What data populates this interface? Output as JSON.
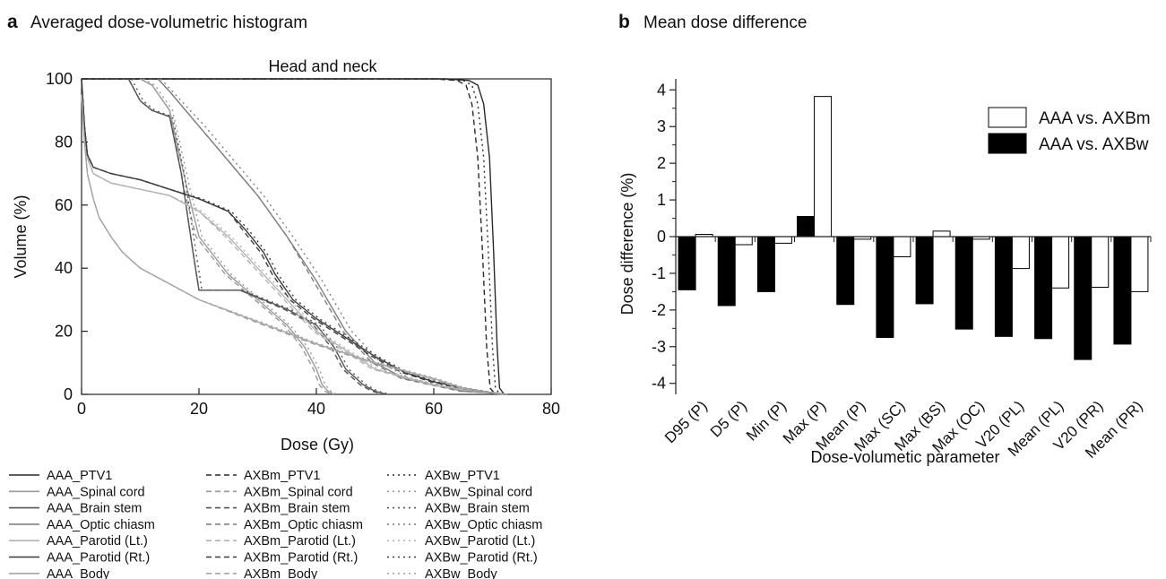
{
  "colors": {
    "PTV1": "#2a2a2a",
    "Spinal cord": "#9a9a9a",
    "Brain stem": "#555555",
    "Optic chiasm": "#808080",
    "Parotid (Lt.)": "#b3b3b3",
    "Parotid (Rt.)": "#3c3c3c",
    "Body": "#a6a6a6",
    "bar_axbm": "#ffffff",
    "bar_axbw": "#000000"
  },
  "chart_data": [
    {
      "type": "line",
      "panel_label": "a",
      "panel_title": "Averaged dose-volumetric histogram",
      "title": "Head and neck",
      "xlabel": "Dose (Gy)",
      "ylabel": "Volume (%)",
      "xlim": [
        0,
        80
      ],
      "ylim": [
        0,
        100
      ],
      "xticks": [
        "0",
        "20",
        "40",
        "60",
        "80"
      ],
      "yticks": [
        "0",
        "20",
        "40",
        "60",
        "80",
        "100"
      ],
      "grid": false,
      "legend_position": "bottom",
      "legend": [
        [
          "AAA_PTV1",
          "AXBm_PTV1",
          "AXBw_PTV1"
        ],
        [
          "AAA_Spinal cord",
          "AXBm_Spinal cord",
          "AXBw_Spinal cord"
        ],
        [
          "AAA_Brain stem",
          "AXBm_Brain stem",
          "AXBw_Brain stem"
        ],
        [
          "AAA_Optic chiasm",
          "AXBm_Optic chiasm",
          "AXBw_Optic chiasm"
        ],
        [
          "AAA_Parotid (Lt.)",
          "AXBm_Parotid (Lt.)",
          "AXBw_Parotid (Lt.)"
        ],
        [
          "AAA_Parotid (Rt.)",
          "AXBm_Parotid (Rt.)",
          "AXBw_Parotid (Rt.)"
        ],
        [
          "AAA_Body",
          "AXBm_Body",
          "AXBw_Body"
        ]
      ],
      "series": [
        {
          "name": "AAA_PTV1",
          "x": [
            0,
            62,
            66,
            67.5,
            68.5,
            69.5,
            70.2,
            70.8,
            71.2,
            72
          ],
          "y": [
            100,
            100,
            99.5,
            98,
            92,
            75,
            45,
            15,
            2,
            0
          ]
        },
        {
          "name": "AXBm_PTV1",
          "x": [
            0,
            60,
            64,
            65.5,
            66.5,
            67.5,
            68.3,
            69,
            69.6,
            70.5
          ],
          "y": [
            100,
            100,
            99.5,
            98,
            92,
            75,
            45,
            15,
            2,
            0
          ]
        },
        {
          "name": "AXBw_PTV1",
          "x": [
            0,
            61,
            65,
            66.5,
            67.5,
            68.5,
            69.3,
            70,
            70.5,
            71.3
          ],
          "y": [
            100,
            100,
            99.5,
            98,
            92,
            75,
            45,
            15,
            2,
            0
          ]
        },
        {
          "name": "AAA_Spinal cord",
          "x": [
            10,
            12,
            15,
            18,
            20,
            25,
            30,
            35,
            38,
            40,
            41,
            42,
            43
          ],
          "y": [
            100,
            98,
            90,
            65,
            50,
            38,
            30,
            22,
            15,
            8,
            3,
            1,
            0
          ]
        },
        {
          "name": "AXBm_Spinal cord",
          "x": [
            10,
            12,
            15,
            17.5,
            19.5,
            24.5,
            29.5,
            34.5,
            37.5,
            39.5,
            40.5,
            41.5,
            42.5
          ],
          "y": [
            100,
            98,
            90,
            65,
            50,
            38,
            30,
            22,
            15,
            8,
            3,
            1,
            0
          ]
        },
        {
          "name": "AXBw_Spinal cord",
          "x": [
            10.5,
            12.5,
            15.5,
            18.5,
            20.5,
            25.5,
            30.5,
            35.5,
            38.5,
            40.5,
            41.5,
            42.5,
            43.5
          ],
          "y": [
            100,
            98,
            90,
            65,
            50,
            38,
            30,
            22,
            15,
            8,
            3,
            1,
            0
          ]
        },
        {
          "name": "AAA_Brain stem",
          "x": [
            8,
            10,
            12,
            15,
            17,
            19,
            20,
            22,
            27,
            35,
            40,
            43,
            45,
            48,
            50,
            52
          ],
          "y": [
            100,
            93,
            90,
            88,
            70,
            45,
            33,
            33,
            33,
            27,
            22,
            15,
            8,
            3,
            1,
            0
          ]
        },
        {
          "name": "AXBm_Brain stem",
          "x": [
            8,
            10,
            12,
            15,
            17,
            19,
            20,
            22,
            27,
            34.5,
            39.5,
            42.5,
            44.5,
            47.5,
            49.5,
            51.5
          ],
          "y": [
            100,
            93,
            90,
            88,
            70,
            45,
            33,
            33,
            33,
            27,
            22,
            15,
            8,
            3,
            1,
            0
          ]
        },
        {
          "name": "AXBw_Brain stem",
          "x": [
            8.5,
            10.5,
            12.5,
            15.5,
            17.5,
            19.5,
            20.5,
            22.5,
            27.5,
            35.5,
            40.5,
            43.5,
            45.5,
            48.5,
            50.5,
            52.5
          ],
          "y": [
            100,
            93,
            90,
            88,
            70,
            45,
            33,
            33,
            33,
            27,
            22,
            15,
            8,
            3,
            1,
            0
          ]
        },
        {
          "name": "AAA_Optic chiasm",
          "x": [
            13,
            15,
            20,
            25,
            30,
            35,
            40,
            45,
            50,
            55,
            60,
            65,
            70,
            72
          ],
          "y": [
            100,
            96,
            85,
            74,
            63,
            50,
            36,
            20,
            10,
            5,
            3,
            1,
            0.5,
            0
          ]
        },
        {
          "name": "AXBm_Optic chiasm",
          "x": [
            13,
            15,
            20,
            25,
            30,
            35,
            39.5,
            44.5,
            49.5,
            54.5,
            59.5,
            64.5,
            69.5,
            71.5
          ],
          "y": [
            100,
            96,
            85,
            74,
            63,
            50,
            36,
            20,
            10,
            5,
            3,
            1,
            0.5,
            0
          ]
        },
        {
          "name": "AXBw_Optic chiasm",
          "x": [
            13.5,
            15.5,
            21,
            26,
            31,
            36,
            41,
            46,
            51,
            56,
            61,
            66,
            70.5,
            72.5
          ],
          "y": [
            100,
            96,
            85,
            74,
            63,
            50,
            36,
            20,
            10,
            5,
            3,
            1,
            0.5,
            0
          ]
        },
        {
          "name": "AAA_Parotid (Lt.)",
          "x": [
            0,
            0.5,
            1,
            2,
            5,
            10,
            15,
            18,
            20,
            25,
            30,
            40,
            50,
            60,
            65,
            70,
            72
          ],
          "y": [
            100,
            85,
            75,
            70,
            67,
            65,
            63,
            60,
            58,
            50,
            40,
            20,
            8,
            3,
            1.5,
            0.5,
            0
          ]
        },
        {
          "name": "AXBm_Parotid (Lt.)",
          "x": [
            0,
            0.5,
            1,
            2,
            5,
            10,
            15,
            18,
            20,
            24.5,
            29.5,
            39.5,
            49.5,
            59.5,
            64.5,
            69.5,
            71.5
          ],
          "y": [
            100,
            85,
            75,
            70,
            67,
            65,
            63,
            60,
            58,
            50,
            40,
            20,
            8,
            3,
            1.5,
            0.5,
            0
          ]
        },
        {
          "name": "AXBw_Parotid (Lt.)",
          "x": [
            0,
            0.5,
            1,
            2,
            5,
            10,
            15,
            18.5,
            20.5,
            25.5,
            30.5,
            40.5,
            50.5,
            60.5,
            65.5,
            70.5,
            72.5
          ],
          "y": [
            100,
            85,
            75,
            70,
            67,
            65,
            63,
            60,
            58,
            50,
            40,
            20,
            8,
            3,
            1.5,
            0.5,
            0
          ]
        },
        {
          "name": "AAA_Parotid (Rt.)",
          "x": [
            0,
            0.5,
            1,
            2,
            5,
            10,
            15,
            20,
            25,
            28,
            31,
            33,
            36,
            40,
            45,
            50,
            55,
            60,
            65,
            70,
            72
          ],
          "y": [
            100,
            85,
            76,
            72,
            70,
            68,
            65,
            62,
            58,
            52,
            45,
            38,
            30,
            24,
            18,
            12,
            7,
            4,
            2,
            0.5,
            0
          ]
        },
        {
          "name": "AXBm_Parotid (Rt.)",
          "x": [
            0,
            0.5,
            1,
            2,
            5,
            10,
            15,
            20,
            25,
            27.5,
            30.5,
            32.5,
            35.5,
            39.5,
            44.5,
            49.5,
            54.5,
            59.5,
            64.5,
            69.5,
            71.5
          ],
          "y": [
            100,
            85,
            76,
            72,
            70,
            68,
            65,
            62,
            58,
            52,
            45,
            38,
            30,
            24,
            18,
            12,
            7,
            4,
            2,
            0.5,
            0
          ]
        },
        {
          "name": "AXBw_Parotid (Rt.)",
          "x": [
            0,
            0.5,
            1,
            2,
            5,
            10,
            15,
            20.5,
            25.5,
            28.5,
            31.5,
            33.5,
            36.5,
            40.5,
            45.5,
            50.5,
            55.5,
            60.5,
            65.5,
            70.5,
            72.5
          ],
          "y": [
            100,
            85,
            76,
            72,
            70,
            68,
            65,
            62,
            58,
            52,
            45,
            38,
            30,
            24,
            18,
            12,
            7,
            4,
            2,
            0.5,
            0
          ]
        },
        {
          "name": "AAA_Body",
          "x": [
            0,
            0.5,
            1,
            2,
            3,
            5,
            7,
            10,
            15,
            20,
            30,
            40,
            50,
            60,
            65,
            70,
            72
          ],
          "y": [
            95,
            80,
            70,
            62,
            56,
            50,
            45,
            40,
            35,
            30,
            23,
            16,
            10,
            5,
            2,
            0.5,
            0
          ]
        },
        {
          "name": "AXBm_Body",
          "x": [
            0,
            0.5,
            1,
            2,
            3,
            5,
            7,
            10,
            15,
            20,
            29.5,
            39.5,
            49.5,
            59.5,
            64.5,
            69.5,
            71.5
          ],
          "y": [
            95,
            80,
            70,
            62,
            56,
            50,
            45,
            40,
            35,
            30,
            23,
            16,
            10,
            5,
            2,
            0.5,
            0
          ]
        },
        {
          "name": "AXBw_Body",
          "x": [
            0,
            0.5,
            1,
            2,
            3,
            5,
            7,
            10,
            15,
            20,
            30.5,
            40.5,
            50.5,
            60.5,
            65.5,
            70.5,
            72.5
          ],
          "y": [
            95,
            80,
            70,
            62,
            56,
            50,
            45,
            40,
            35,
            30,
            23,
            16,
            10,
            5,
            2,
            0.5,
            0
          ]
        }
      ]
    },
    {
      "type": "bar",
      "panel_label": "b",
      "panel_title": "Mean dose difference",
      "xlabel": "Dose-volumetic parameter",
      "ylabel": "Dose difference (%)",
      "ylim": [
        -4.3,
        4.3
      ],
      "yticks": [
        "-4",
        "-3",
        "-2",
        "-1",
        "0",
        "1",
        "2",
        "3",
        "4"
      ],
      "grid": false,
      "legend_position": "top-right",
      "categories": [
        "D95 (P)",
        "D5 (P)",
        "Min (P)",
        "Max (P)",
        "Mean (P)",
        "Max (SC)",
        "Max (BS)",
        "Max (OC)",
        "V20 (PL)",
        "Mean (PL)",
        "V20 (PR)",
        "Mean (PR)"
      ],
      "series": [
        {
          "name": "AAA vs. AXBw",
          "values": [
            -1.45,
            -1.88,
            -1.5,
            0.55,
            -1.85,
            -2.75,
            -1.83,
            -2.52,
            -2.72,
            -2.78,
            -3.35,
            -2.93
          ]
        },
        {
          "name": "AAA vs. AXBm",
          "values": [
            0.06,
            -0.22,
            -0.18,
            3.82,
            -0.07,
            -0.55,
            0.15,
            -0.07,
            -0.87,
            -1.4,
            -1.38,
            -1.5
          ]
        }
      ]
    }
  ]
}
